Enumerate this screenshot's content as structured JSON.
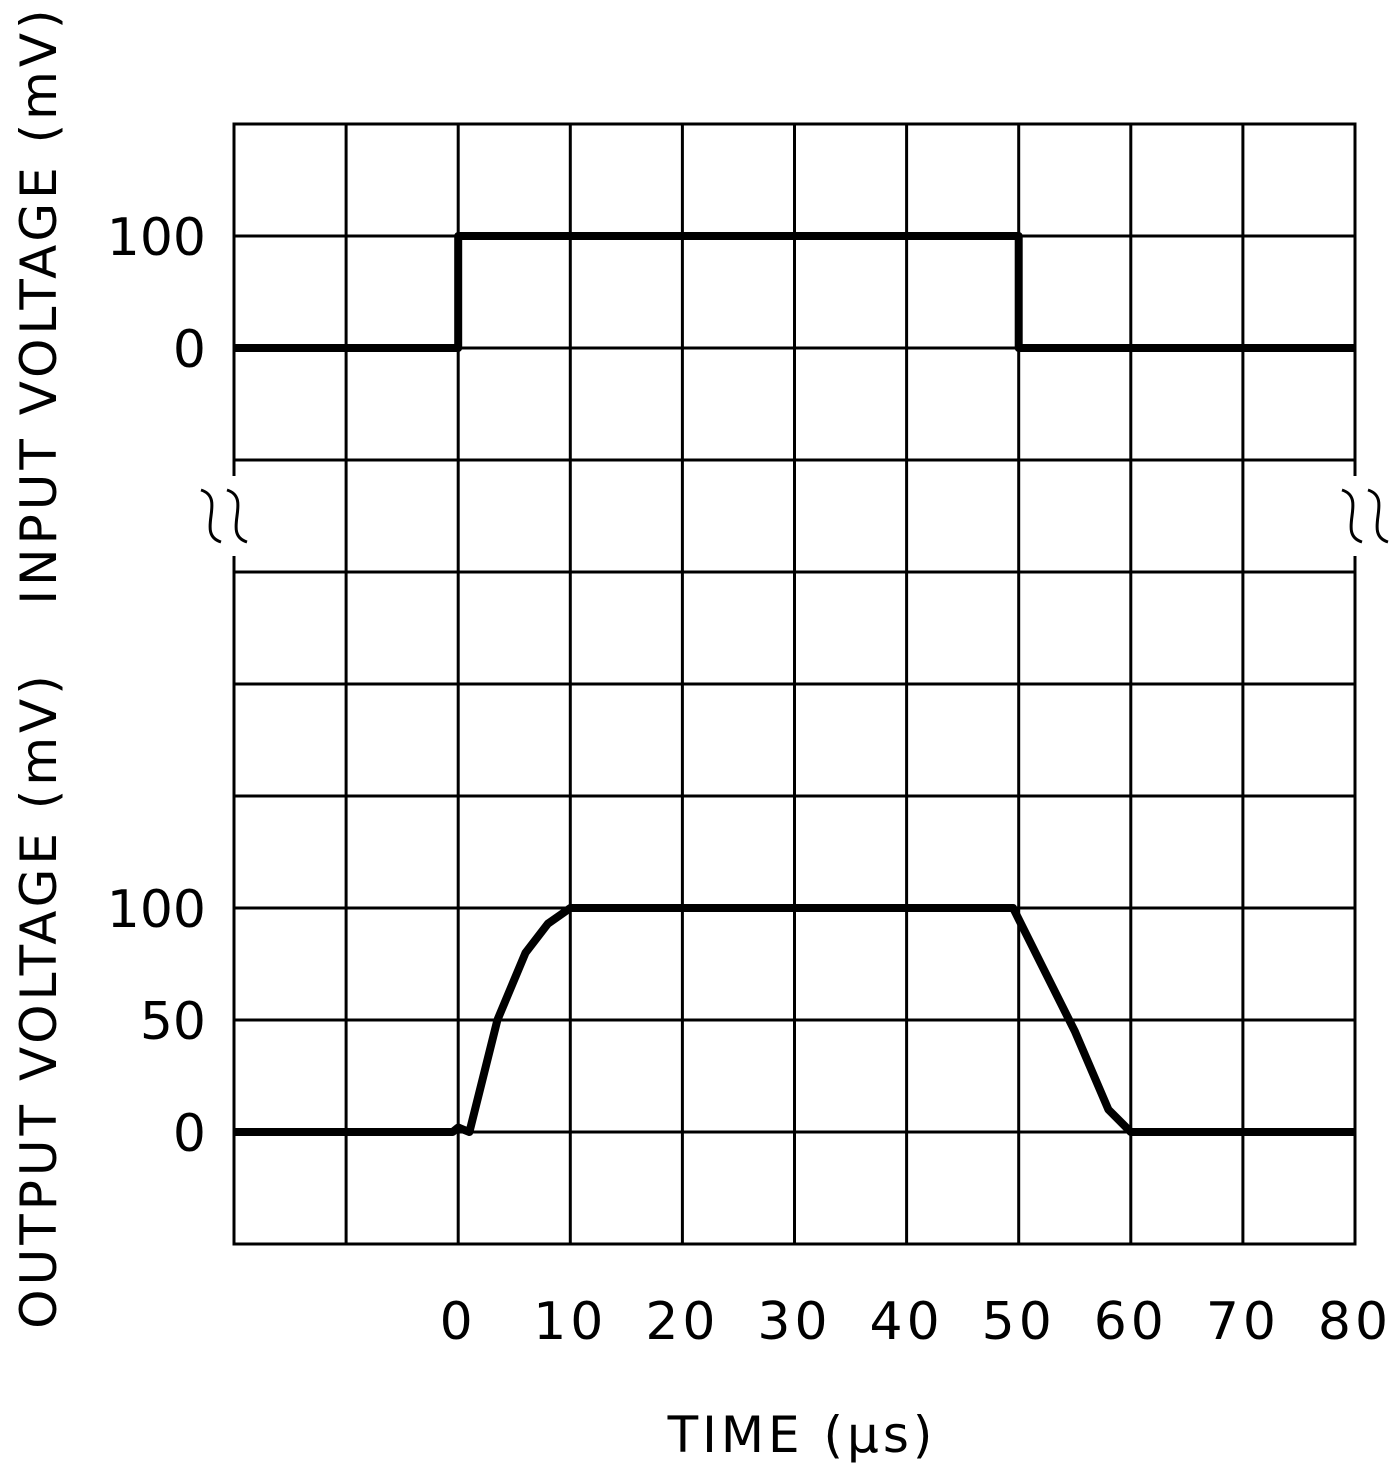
{
  "chart_data": {
    "type": "line",
    "title": "",
    "xlabel": "TIME (µs)",
    "x_ticks": [
      "0",
      "10",
      "20",
      "30",
      "40",
      "50",
      "60",
      "70",
      "80"
    ],
    "xlim": [
      -20,
      80
    ],
    "grid": true,
    "axis_break": true,
    "panels": [
      {
        "name": "input",
        "ylabel": "INPUT VOLTAGE (mV)",
        "y_ticks": [
          "100",
          "0"
        ],
        "y_tick_values": [
          100,
          0
        ],
        "series": [
          {
            "name": "",
            "x": [
              -20,
              0,
              0,
              50,
              50,
              80
            ],
            "y": [
              0,
              0,
              100,
              100,
              0,
              0
            ]
          }
        ]
      },
      {
        "name": "output",
        "ylabel": "OUTPUT VOLTAGE (mV)",
        "y_ticks": [
          "100",
          "50",
          "0"
        ],
        "y_tick_values": [
          100,
          50,
          0
        ],
        "series": [
          {
            "name": "",
            "x": [
              -20,
              -0.5,
              0,
              0.5,
              1,
              3.5,
              6,
              8,
              10,
              20,
              30,
              40,
              49.5,
              50,
              52,
              55,
              58,
              60,
              62,
              80
            ],
            "y": [
              0,
              0,
              2,
              1,
              0,
              50,
              80,
              93,
              100,
              100,
              100,
              100,
              100,
              95,
              75,
              45,
              10,
              0,
              0,
              0
            ]
          }
        ]
      }
    ],
    "colors": {
      "line": "#000000",
      "grid": "#000000",
      "background": "#ffffff"
    }
  }
}
